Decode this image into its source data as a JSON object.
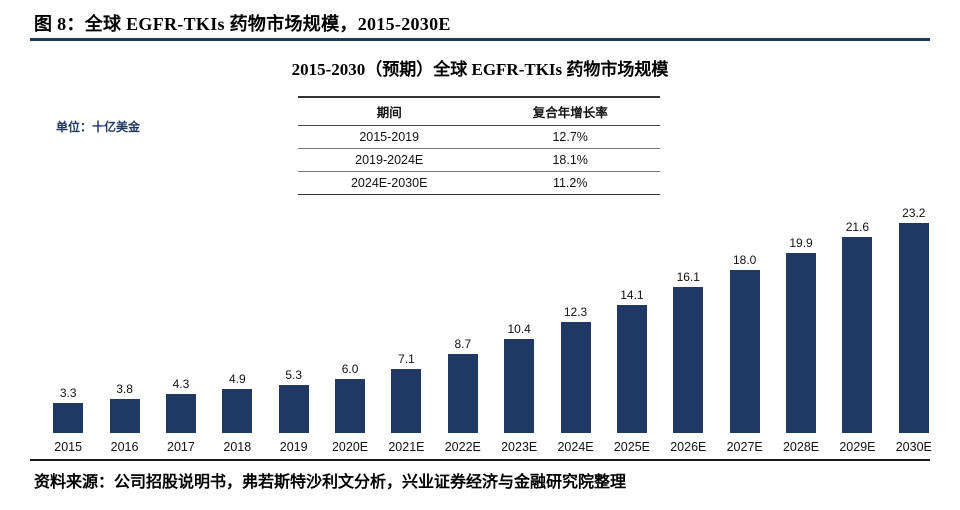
{
  "header": {
    "title": "图 8：全球 EGFR-TKIs 药物市场规模，2015-2030E"
  },
  "chart": {
    "title": "2015-2030（预期）全球 EGFR-TKIs 药物市场规模",
    "unit_label": "单位：十亿美金"
  },
  "cagr_table": {
    "headers": [
      "期间",
      "复合年增长率"
    ],
    "rows": [
      {
        "period": "2015-2019",
        "cagr": "12.7%"
      },
      {
        "period": "2019-2024E",
        "cagr": "18.1%"
      },
      {
        "period": "2024E-2030E",
        "cagr": "11.2%"
      }
    ]
  },
  "chart_data": {
    "type": "bar",
    "title": "2015-2030（预期）全球 EGFR-TKIs 药物市场规模",
    "categories": [
      "2015",
      "2016",
      "2017",
      "2018",
      "2019",
      "2020E",
      "2021E",
      "2022E",
      "2023E",
      "2024E",
      "2025E",
      "2026E",
      "2027E",
      "2028E",
      "2029E",
      "2030E"
    ],
    "values": [
      3.3,
      3.8,
      4.3,
      4.9,
      5.3,
      6.0,
      7.1,
      8.7,
      10.4,
      12.3,
      14.1,
      16.1,
      18.0,
      19.9,
      21.6,
      23.2
    ],
    "xlabel": "",
    "ylabel": "单位：十亿美金",
    "ylim": [
      0,
      25
    ],
    "grid": false,
    "legend": "none",
    "data_labels": true,
    "annotations": {
      "cagr_2015_2019": "12.7%",
      "cagr_2019_2024E": "18.1%",
      "cagr_2024E_2030E": "11.2%"
    }
  },
  "footer": {
    "source": "资料来源：公司招股说明书，弗若斯特沙利文分析，兴业证券经济与金融研究院整理"
  },
  "colors": {
    "accent": "#1F3864",
    "bar": "#1F3864",
    "unit_text": "#1F3864"
  }
}
